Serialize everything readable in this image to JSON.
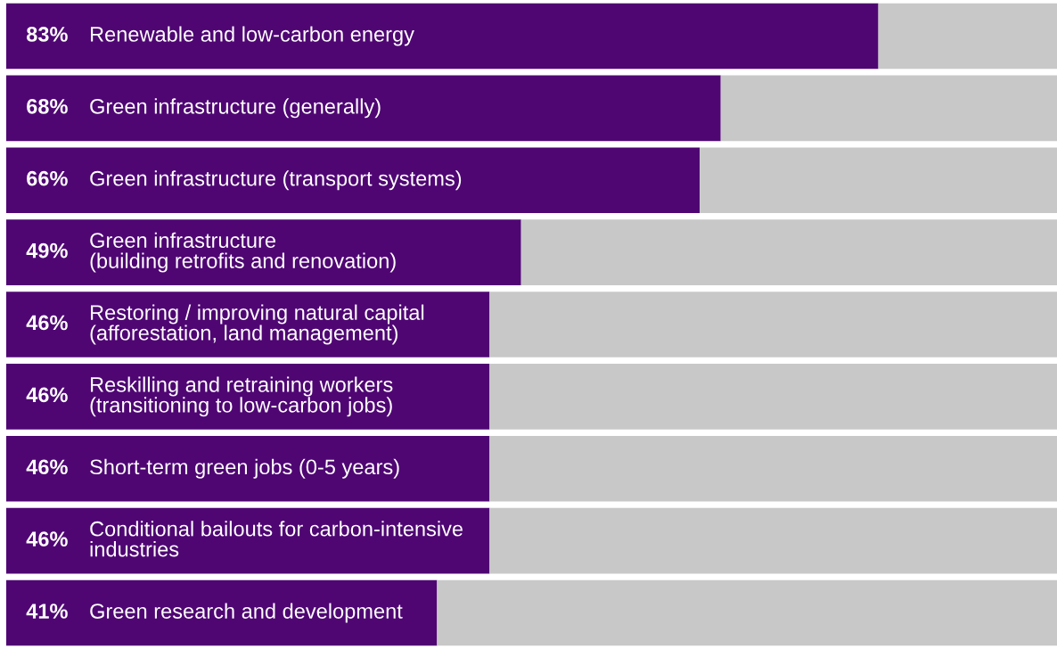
{
  "chart_data": {
    "type": "bar",
    "orientation": "horizontal",
    "stacked": true,
    "legend": false,
    "xlim": [
      0,
      100
    ],
    "categories": [
      "Renewable and low-carbon energy",
      "Green infrastructure (generally)",
      "Green infrastructure (transport systems)",
      "Green infrastructure\n(building retrofits and renovation)",
      "Restoring / improving natural capital\n(afforestation, land management)",
      "Reskilling and retraining workers\n(transitioning to low-carbon jobs)",
      "Short-term green jobs (0-5 years)",
      "Conditional bailouts for carbon-intensive\nindustries",
      "Green research and development"
    ],
    "series": [
      {
        "color": "#4f0673",
        "values": [
          83,
          68,
          66,
          49,
          46,
          46,
          46,
          46,
          41
        ],
        "value_labels": [
          "83%",
          "68%",
          "66%",
          "49%",
          "46%",
          "46%",
          "46%",
          "46%",
          "41%"
        ]
      },
      {
        "color": "#c8c8c8",
        "values": [
          17,
          32,
          34,
          51,
          54,
          54,
          54,
          54,
          59
        ]
      }
    ]
  }
}
